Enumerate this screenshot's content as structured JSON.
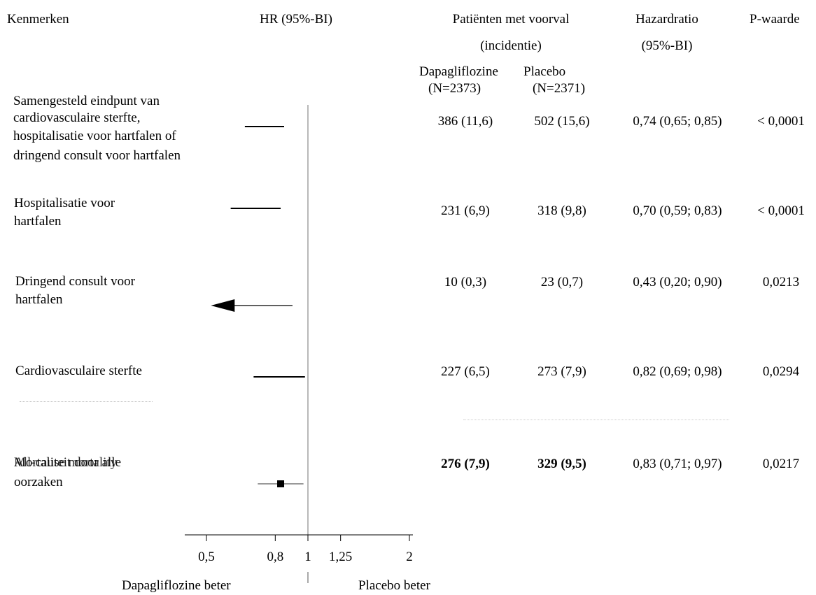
{
  "header": {
    "col_kenmerken": "Kenmerken",
    "col_hr": "HR (95%-BI)",
    "col_patients_line1": "Patiënten met voorval",
    "col_patients_line2": "(incidentie)",
    "col_dapa": "Dapagliflozine",
    "col_placebo": "Placebo",
    "col_dapa_n": "(N=2373)",
    "col_placebo_n": "(N=2371)",
    "col_hazard_line1": "Hazardratio",
    "col_hazard_line2": "(95%-BI)",
    "col_p": "P-waarde"
  },
  "rows": [
    {
      "label_lines": [
        "Samengesteld eindpunt van",
        "cardiovasculaire sterfte,",
        "hospitalisatie voor hartfalen of",
        "dringend consult voor hartfalen"
      ],
      "dapa": "386 (11,6)",
      "placebo": "502 (15,6)",
      "hr": "0,74 (0,65; 0,85)",
      "p": "< 0,0001"
    },
    {
      "label_lines": [
        "Hospitalisatie voor",
        "hartfalen"
      ],
      "dapa": "231 (6,9)",
      "placebo": "318 (9,8)",
      "hr": "0,70 (0,59; 0,83)",
      "p": "< 0,0001"
    },
    {
      "label_lines": [
        "Dringend consult voor",
        "hartfalen"
      ],
      "dapa": "10 (0,3)",
      "placebo": "23 (0,7)",
      "hr": "0,43 (0,20; 0,90)",
      "p": "0,0213"
    },
    {
      "label_lines": [
        "Cardiovasculaire sterfte"
      ],
      "dapa": "227 (6,5)",
      "placebo": "273 (7,9)",
      "hr": "0,82 (0,69; 0,98)",
      "p": "0,0294"
    },
    {
      "label_lines": [
        "Mortaliteit door alle",
        "oorzaken"
      ],
      "overlay_label": "All-cause mortality",
      "dapa": "276 (7,9)",
      "placebo": "329 (9,5)",
      "hr": "0,83 (0,71; 0,97)",
      "p": "0,0217"
    }
  ],
  "axis": {
    "tick_labels": [
      "0,5",
      "0,8",
      "1",
      "1,25",
      "2"
    ],
    "favors_left": "Dapagliflozine beter",
    "favors_right": "Placebo beter"
  },
  "chart_data": {
    "type": "forest",
    "scale": "log",
    "xlim": [
      0.4,
      2.1
    ],
    "reference_line": 1,
    "ticks": [
      0.5,
      0.8,
      1,
      1.25,
      2
    ],
    "categories": [
      "Samengesteld eindpunt van cardiovasculaire sterfte, hospitalisatie voor hartfalen of dringend consult voor hartfalen",
      "Hospitalisatie voor hartfalen",
      "Dringend consult voor hartfalen",
      "Cardiovasculaire sterfte",
      "Mortaliteit door alle oorzaken"
    ],
    "hr": [
      0.74,
      0.7,
      0.43,
      0.82,
      0.83
    ],
    "ci_low": [
      0.65,
      0.59,
      0.2,
      0.69,
      0.71
    ],
    "ci_high": [
      0.85,
      0.83,
      0.9,
      0.98,
      0.97
    ],
    "point_marker_visible": [
      false,
      false,
      false,
      false,
      true
    ],
    "truncated_left": [
      false,
      false,
      true,
      false,
      false
    ]
  }
}
